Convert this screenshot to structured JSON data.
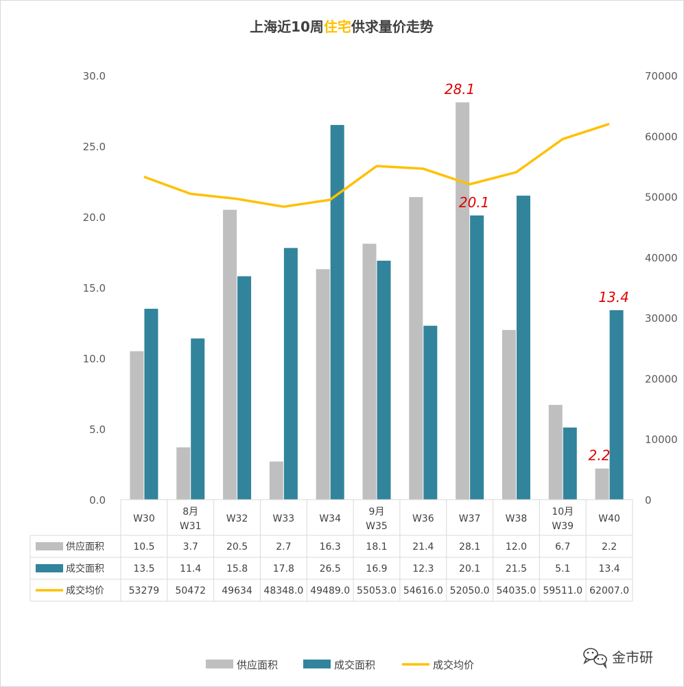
{
  "title": {
    "prefix": "上海近10周",
    "highlight": "住宅",
    "suffix": "供求量价走势"
  },
  "colors": {
    "supply": "#bfbfbf",
    "deal": "#31849b",
    "price": "#ffc000",
    "highlight": "#ffc000",
    "annotation": "#e00000"
  },
  "watermark": {
    "text": "金市研",
    "icon": "wechat-icon"
  },
  "chart_data": {
    "type": "bar",
    "categories": [
      [
        "W30"
      ],
      [
        "8月",
        "W31"
      ],
      [
        "W32"
      ],
      [
        "W33"
      ],
      [
        "W34"
      ],
      [
        "9月",
        "W35"
      ],
      [
        "W36"
      ],
      [
        "W37"
      ],
      [
        "W38"
      ],
      [
        "10月",
        "W39"
      ],
      [
        "W40"
      ]
    ],
    "y_left": {
      "min": 0,
      "max": 30,
      "step": 5,
      "ticks": [
        "0.0",
        "5.0",
        "10.0",
        "15.0",
        "20.0",
        "25.0",
        "30.0"
      ]
    },
    "y_right": {
      "min": 0,
      "max": 70000,
      "step": 10000,
      "ticks": [
        "0",
        "10000",
        "20000",
        "30000",
        "40000",
        "50000",
        "60000",
        "70000"
      ]
    },
    "series": [
      {
        "name": "供应面积",
        "type": "bar",
        "axis": "left",
        "values": [
          10.5,
          3.7,
          20.5,
          2.7,
          16.3,
          18.1,
          21.4,
          28.1,
          12.0,
          6.7,
          2.2
        ],
        "labels": [
          "10.5",
          "3.7",
          "20.5",
          "2.7",
          "16.3",
          "18.1",
          "21.4",
          "28.1",
          "12.0",
          "6.7",
          "2.2"
        ]
      },
      {
        "name": "成交面积",
        "type": "bar",
        "axis": "left",
        "values": [
          13.5,
          11.4,
          15.8,
          17.8,
          26.5,
          16.9,
          12.3,
          20.1,
          21.5,
          5.1,
          13.4
        ],
        "labels": [
          "13.5",
          "11.4",
          "15.8",
          "17.8",
          "26.5",
          "16.9",
          "12.3",
          "20.1",
          "21.5",
          "5.1",
          "13.4"
        ]
      },
      {
        "name": "成交均价",
        "type": "line",
        "axis": "right",
        "values": [
          53279,
          50472,
          49634,
          48348,
          49489,
          55053,
          54616,
          52050,
          54035,
          59511,
          62007
        ],
        "labels": [
          "53279",
          "50472",
          "49634",
          "48348.0",
          "49489.0",
          "55053.0",
          "54616.0",
          "52050.0",
          "54035.0",
          "59511.0",
          "62007.0"
        ]
      }
    ],
    "annotations": [
      {
        "text": "28.1",
        "series": 0,
        "index": 7
      },
      {
        "text": "20.1",
        "series": 1,
        "index": 7
      },
      {
        "text": "2.2",
        "series": 0,
        "index": 10
      },
      {
        "text": "13.4",
        "series": 1,
        "index": 10
      }
    ],
    "grid": false,
    "legend": "bottom"
  }
}
